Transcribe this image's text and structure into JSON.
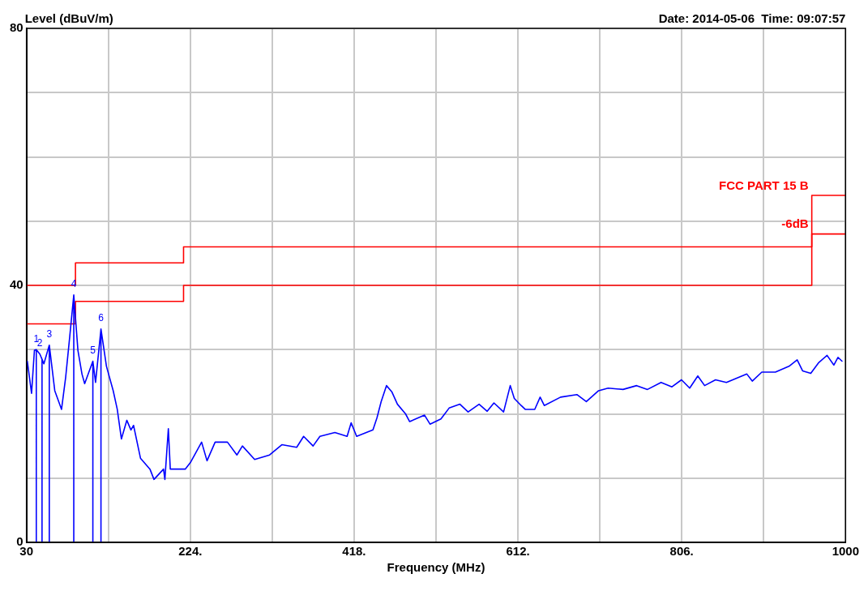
{
  "chart_data": {
    "type": "line",
    "title": "Date: 2014-05-06  Time: 09:07:57",
    "ylabel": "Level (dBuV/m)",
    "xlabel": "Frequency (MHz)",
    "xlim": [
      30,
      1000
    ],
    "ylim": [
      0,
      80
    ],
    "xticks": [
      30,
      {
        "value": 127,
        "label": null
      },
      {
        "value": 224,
        "label": "224."
      },
      {
        "value": 321,
        "label": null
      },
      {
        "value": 418,
        "label": "418."
      },
      {
        "value": 515,
        "label": null
      },
      {
        "value": 612,
        "label": "612."
      },
      {
        "value": 709,
        "label": null
      },
      {
        "value": 806,
        "label": "806."
      },
      {
        "value": 903,
        "label": null
      },
      1000
    ],
    "yticks": [
      0,
      {
        "value": 10,
        "label": null
      },
      {
        "value": 20,
        "label": null
      },
      {
        "value": 30,
        "label": null
      },
      40,
      {
        "value": 50,
        "label": null
      },
      {
        "value": 60,
        "label": null
      },
      {
        "value": 70,
        "label": null
      },
      80
    ],
    "grid": true,
    "legend": false,
    "marker": "none",
    "line_style": "solid",
    "series": [
      {
        "color": "#0000ff",
        "x": [
          31,
          36,
          39.4,
          41.6,
          41.6,
          41.6,
          45.8,
          48.4,
          48.4,
          48.4,
          50.6,
          57,
          57,
          57,
          63.5,
          71.5,
          76.4,
          81.2,
          86,
          86,
          86,
          90.9,
          95.7,
          98.9,
          108.6,
          108.6,
          108.6,
          111.8,
          118.2,
          118.2,
          118.2,
          124.7,
          132.7,
          137.5,
          142.4,
          148.8,
          153.7,
          156.8,
          165,
          176.2,
          181,
          192.3,
          193.9,
          198,
          200.3,
          218,
          224.5,
          237.4,
          243.8,
          253.4,
          268,
          279.2,
          285.7,
          300.2,
          317.9,
          332.4,
          350,
          358.2,
          369.4,
          377.5,
          395.2,
          409.7,
          414.5,
          421,
          440.3,
          445.1,
          450,
          456.3,
          462.8,
          469.3,
          478.9,
          483.8,
          501.4,
          507.9,
          520.8,
          530.5,
          543.3,
          553,
          566,
          575.6,
          583.6,
          595,
          602.9,
          607.7,
          615.8,
          620.6,
          631.9,
          638.3,
          643.2,
          662.5,
          681.8,
          693,
          707.5,
          718.8,
          736.5,
          752.6,
          765.4,
          781.5,
          794.4,
          805.7,
          815.4,
          825,
          833.1,
          846,
          858.9,
          883.1,
          889.5,
          900.8,
          916.9,
          933,
          942.7,
          949.1,
          958.8,
          968.4,
          978.1,
          986.1,
          991,
          995.8
        ],
        "values": [
          28.2,
          23.2,
          29.9,
          30,
          0,
          30,
          29.3,
          28.5,
          0,
          28.5,
          27.8,
          30.7,
          0,
          30.7,
          23.6,
          20.7,
          25.7,
          32,
          38.5,
          0,
          38.5,
          29.9,
          26.2,
          24.7,
          28.2,
          0,
          28.2,
          24.9,
          33.2,
          0,
          33.2,
          27.4,
          23.6,
          20.7,
          16.1,
          19,
          17.5,
          18.2,
          13.1,
          11.4,
          9.8,
          11.4,
          9.8,
          17.7,
          11.4,
          11.4,
          12.5,
          15.6,
          12.7,
          15.6,
          15.6,
          13.6,
          15,
          12.9,
          13.6,
          15.2,
          14.8,
          16.5,
          15,
          16.5,
          17.1,
          16.5,
          18.6,
          16.5,
          17.5,
          19.4,
          21.9,
          24.4,
          23.4,
          21.5,
          20,
          18.8,
          19.8,
          18.4,
          19.2,
          20.9,
          21.5,
          20.3,
          21.5,
          20.4,
          21.7,
          20.3,
          24.4,
          22.4,
          21.3,
          20.7,
          20.7,
          22.6,
          21.3,
          22.6,
          23,
          21.9,
          23.6,
          24,
          23.8,
          24.4,
          23.8,
          24.9,
          24.2,
          25.3,
          24,
          25.9,
          24.4,
          25.3,
          24.9,
          26.2,
          25.1,
          26.5,
          26.5,
          27.4,
          28.4,
          26.7,
          26.3,
          28,
          29.1,
          27.6,
          28.8,
          28.2
        ]
      },
      {
        "name": "FCC PART 15 B",
        "color": "#ff0000",
        "x": [
          30,
          88,
          88,
          216,
          216,
          960,
          960,
          1000
        ],
        "values": [
          40,
          40,
          43.5,
          43.5,
          46,
          46,
          54,
          54
        ]
      },
      {
        "name": "-6dB",
        "color": "#ff0000",
        "x": [
          30,
          88,
          88,
          216,
          216,
          960,
          960,
          1000
        ],
        "values": [
          34,
          34,
          37.5,
          37.5,
          40,
          40,
          48,
          48
        ]
      }
    ],
    "annotations": [
      {
        "text": "1",
        "x": 41.6,
        "y": 30
      },
      {
        "text": "2",
        "x": 45.8,
        "y": 29.3
      },
      {
        "text": "3",
        "x": 57,
        "y": 30.7
      },
      {
        "text": "4",
        "x": 86,
        "y": 38.5
      },
      {
        "text": "5",
        "x": 108.6,
        "y": 28.2
      },
      {
        "text": "6",
        "x": 118.2,
        "y": 33.2
      }
    ]
  }
}
